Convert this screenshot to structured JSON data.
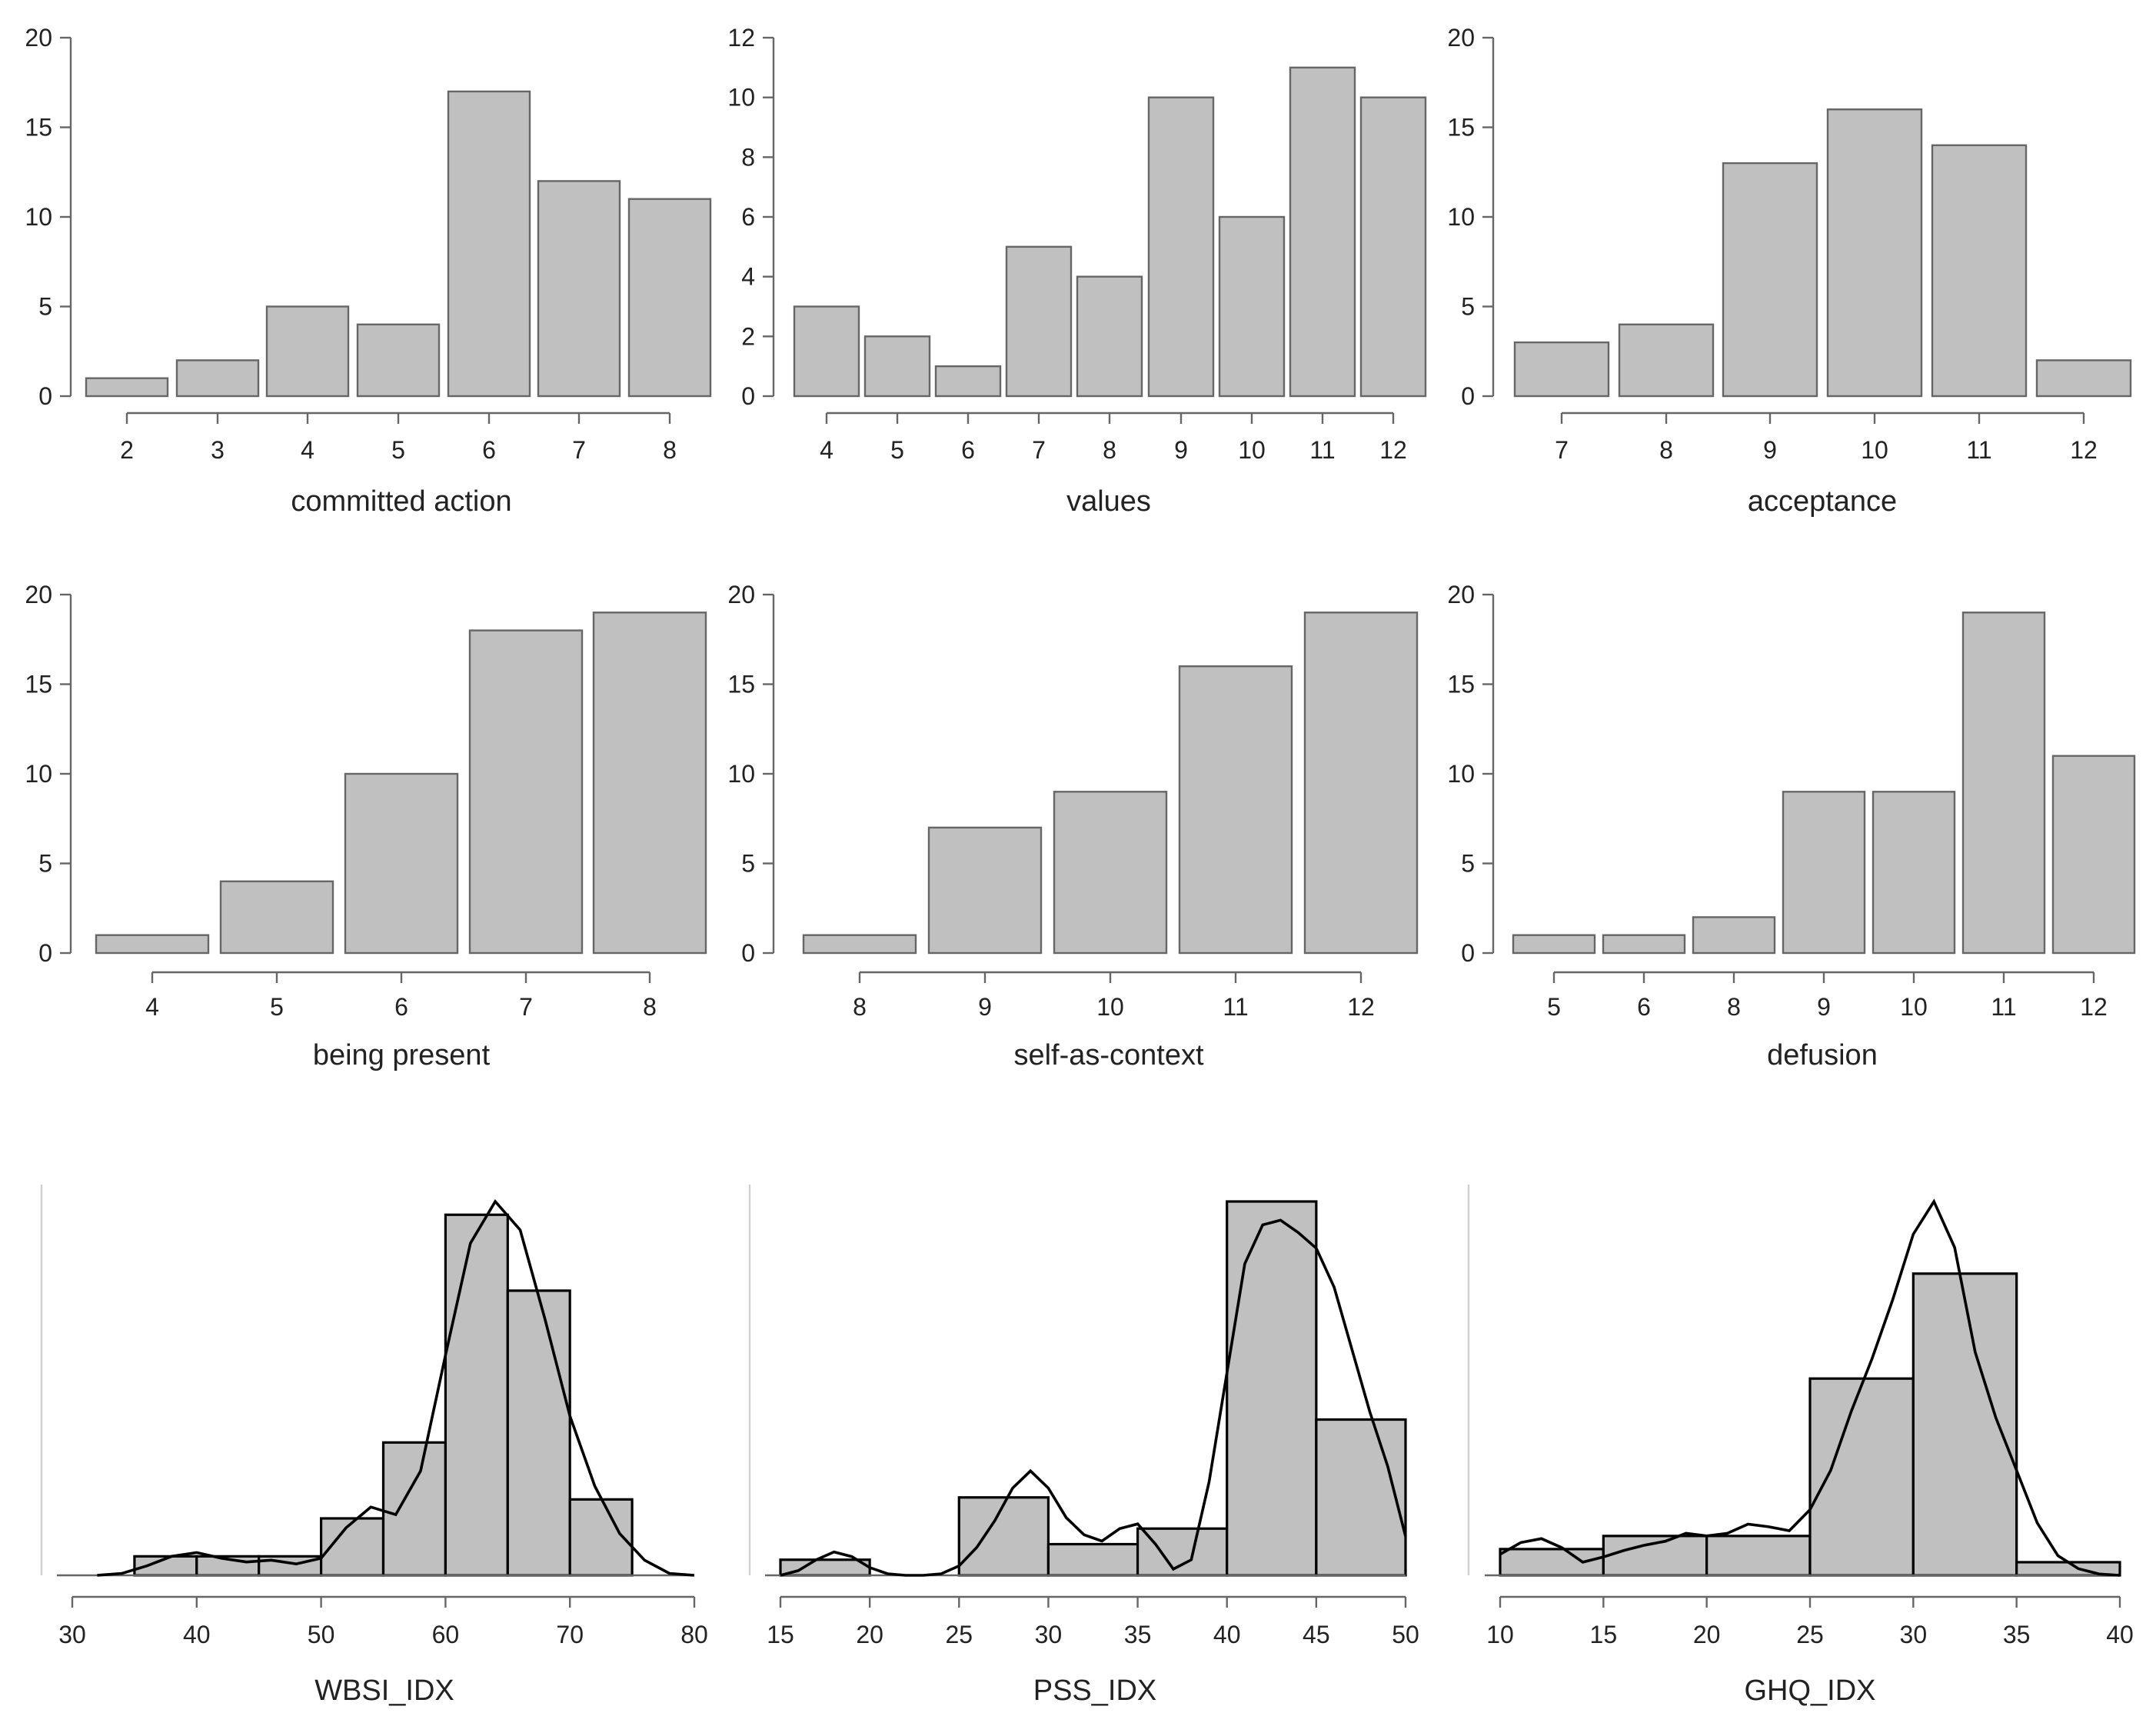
{
  "chart_data": [
    {
      "type": "bar",
      "xlabel": "committed action",
      "categories": [
        "2",
        "3",
        "4",
        "5",
        "6",
        "7",
        "8"
      ],
      "values": [
        1,
        2,
        5,
        4,
        17,
        12,
        11
      ],
      "ylim": [
        0,
        20
      ],
      "yticks": [
        "0",
        "5",
        "10",
        "15",
        "20"
      ]
    },
    {
      "type": "bar",
      "xlabel": "values",
      "categories": [
        "4",
        "5",
        "6",
        "7",
        "8",
        "9",
        "10",
        "11",
        "12"
      ],
      "values": [
        3,
        2,
        1,
        5,
        4,
        10,
        6,
        11,
        10
      ],
      "ylim": [
        0,
        12
      ],
      "yticks": [
        "0",
        "2",
        "4",
        "6",
        "8",
        "10",
        "12"
      ]
    },
    {
      "type": "bar",
      "xlabel": "acceptance",
      "categories": [
        "7",
        "8",
        "9",
        "10",
        "11",
        "12"
      ],
      "values": [
        3,
        4,
        13,
        16,
        14,
        2
      ],
      "ylim": [
        0,
        20
      ],
      "yticks": [
        "0",
        "5",
        "10",
        "15",
        "20"
      ]
    },
    {
      "type": "bar",
      "xlabel": "being present",
      "categories": [
        "4",
        "5",
        "6",
        "7",
        "8"
      ],
      "values": [
        1,
        4,
        10,
        18,
        19
      ],
      "ylim": [
        0,
        20
      ],
      "yticks": [
        "0",
        "5",
        "10",
        "15",
        "20"
      ]
    },
    {
      "type": "bar",
      "xlabel": "self-as-context",
      "categories": [
        "8",
        "9",
        "10",
        "11",
        "12"
      ],
      "values": [
        1,
        7,
        9,
        16,
        19
      ],
      "ylim": [
        0,
        20
      ],
      "yticks": [
        "0",
        "5",
        "10",
        "15",
        "20"
      ]
    },
    {
      "type": "bar",
      "xlabel": "defusion",
      "categories": [
        "5",
        "6",
        "8",
        "9",
        "10",
        "11",
        "12"
      ],
      "values": [
        1,
        1,
        2,
        9,
        9,
        19,
        11
      ],
      "ylim": [
        0,
        20
      ],
      "yticks": [
        "0",
        "5",
        "10",
        "15",
        "20"
      ]
    },
    {
      "type": "histogram",
      "xlabel": "WBSI_IDX",
      "xlim": [
        30,
        80
      ],
      "xticks": [
        "30",
        "40",
        "50",
        "60",
        "70",
        "80"
      ],
      "bin_edges": [
        35,
        40,
        45,
        50,
        55,
        60,
        65,
        70,
        75
      ],
      "counts": [
        1,
        1,
        1,
        3,
        7,
        19,
        15,
        4
      ],
      "density": {
        "x": [
          32,
          34,
          36,
          38,
          40,
          42,
          44,
          46,
          48,
          50,
          52,
          54,
          56,
          58,
          60,
          62,
          64,
          66,
          68,
          70,
          72,
          74,
          76,
          78,
          80
        ],
        "y": [
          0.0,
          0.1,
          0.5,
          1.0,
          1.2,
          0.9,
          0.7,
          0.8,
          0.6,
          0.9,
          2.5,
          3.6,
          3.2,
          5.5,
          11.6,
          17.5,
          19.7,
          18.2,
          13.5,
          8.4,
          4.7,
          2.2,
          0.8,
          0.1,
          0.0
        ]
      }
    },
    {
      "type": "histogram",
      "xlabel": "PSS_IDX",
      "xlim": [
        15,
        50
      ],
      "xticks": [
        "15",
        "20",
        "25",
        "30",
        "35",
        "40",
        "45",
        "50"
      ],
      "bin_edges": [
        15,
        20,
        25,
        30,
        35,
        40,
        45,
        50
      ],
      "counts": [
        1,
        0,
        5,
        2,
        3,
        24,
        10
      ],
      "density": {
        "x": [
          15,
          16,
          17,
          18,
          19,
          20,
          21,
          22,
          23,
          24,
          25,
          26,
          27,
          28,
          29,
          30,
          31,
          32,
          33,
          34,
          35,
          36,
          37,
          38,
          39,
          40,
          41,
          42,
          43,
          44,
          45,
          46,
          47,
          48,
          49,
          50
        ],
        "y": [
          0.0,
          0.3,
          1.0,
          1.5,
          1.2,
          0.5,
          0.1,
          0.0,
          0.0,
          0.1,
          0.6,
          1.8,
          3.5,
          5.6,
          6.7,
          5.6,
          3.7,
          2.6,
          2.2,
          3.0,
          3.3,
          2.0,
          0.4,
          1.0,
          6.0,
          13.0,
          20.0,
          22.5,
          22.8,
          22.0,
          21.0,
          18.5,
          14.5,
          10.5,
          7.0,
          2.5
        ]
      }
    },
    {
      "type": "histogram",
      "xlabel": "GHQ_IDX",
      "xlim": [
        10,
        40
      ],
      "xticks": [
        "10",
        "15",
        "20",
        "25",
        "30",
        "35",
        "40"
      ],
      "bin_edges": [
        10,
        15,
        20,
        25,
        30,
        35,
        40
      ],
      "counts": [
        2,
        3,
        3,
        15,
        23,
        1
      ],
      "density": {
        "x": [
          10,
          11,
          12,
          13,
          14,
          15,
          16,
          17,
          18,
          19,
          20,
          21,
          22,
          23,
          24,
          25,
          26,
          27,
          28,
          29,
          30,
          31,
          32,
          33,
          34,
          35,
          36,
          37,
          38,
          39,
          40
        ],
        "y": [
          1.6,
          2.5,
          2.8,
          2.1,
          1.0,
          1.4,
          1.9,
          2.3,
          2.6,
          3.2,
          3.0,
          3.2,
          3.9,
          3.7,
          3.4,
          5.0,
          8.0,
          12.5,
          16.5,
          21.0,
          26.0,
          28.5,
          25.0,
          17.0,
          12.0,
          8.0,
          4.0,
          1.5,
          0.5,
          0.1,
          0.0
        ]
      }
    }
  ]
}
